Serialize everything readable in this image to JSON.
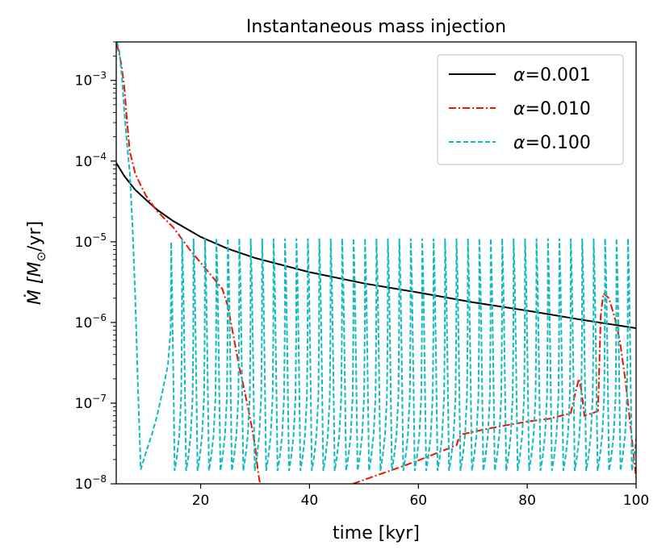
{
  "chart_data": {
    "type": "line",
    "title": "Instantaneous mass injection",
    "xlabel": "time [kyr]",
    "ylabel_prefix": "Ṁ [M",
    "ylabel_sub": "⊙",
    "ylabel_suffix": "/yr]",
    "xlim": [
      4.5,
      100
    ],
    "ylim": [
      1e-08,
      0.003
    ],
    "yscale": "log",
    "x_ticks": [
      20,
      40,
      60,
      80,
      100
    ],
    "x_tick_labels": [
      "20",
      "40",
      "60",
      "80",
      "100"
    ],
    "y_ticks": [
      1e-08,
      1e-07,
      1e-06,
      1e-05,
      0.0001,
      0.001
    ],
    "y_tick_bases": [
      "10",
      "10",
      "10",
      "10",
      "10",
      "10"
    ],
    "y_tick_exponents": [
      "−8",
      "−7",
      "−6",
      "−5",
      "−4",
      "−3"
    ],
    "legend_position": "top-right",
    "series": [
      {
        "name": "α=0.001",
        "legend_symbol": "α",
        "legend_value": "=0.001",
        "color": "#000000",
        "style": "solid",
        "x": [
          4.5,
          6,
          8,
          10,
          12,
          15,
          20,
          25,
          30,
          40,
          50,
          60,
          70,
          80,
          90,
          100
        ],
        "y": [
          9.5e-05,
          6.5e-05,
          4.4e-05,
          3.3e-05,
          2.5e-05,
          1.8e-05,
          1.15e-05,
          8.2e-06,
          6.3e-06,
          4.2e-06,
          3.05e-06,
          2.35e-06,
          1.78e-06,
          1.4e-06,
          1.08e-06,
          8.5e-07
        ]
      },
      {
        "name": "α=0.010",
        "legend_symbol": "α",
        "legend_value": "=0.010",
        "color": "#ee1100",
        "style": "dashdot",
        "x": [
          4.6,
          5,
          5.5,
          6,
          6.5,
          7,
          8,
          9,
          10,
          12,
          15,
          18,
          20,
          22,
          24,
          25,
          26,
          27,
          28,
          29,
          30,
          30.5,
          30.8,
          31
        ],
        "y": [
          0.0028,
          0.0022,
          0.0015,
          0.0008,
          0.0003,
          0.00013,
          7e-05,
          5e-05,
          3.7e-05,
          2.4e-05,
          1.5e-05,
          8e-06,
          5.5e-06,
          3.8e-06,
          2.6e-06,
          1.6e-06,
          7e-07,
          3e-07,
          1.5e-07,
          7e-08,
          3e-08,
          1.5e-08,
          1.1e-08,
          1e-08
        ],
        "x2": [
          48,
          52,
          56,
          60,
          64,
          67,
          67.5,
          68,
          72,
          76,
          80,
          84,
          88,
          89,
          89.5,
          90,
          90.5,
          91,
          92,
          93,
          93.5,
          94,
          95,
          96,
          97,
          98,
          99,
          100
        ],
        "y2": [
          1e-08,
          1.25e-08,
          1.55e-08,
          1.95e-08,
          2.5e-08,
          3e-08,
          3.8e-08,
          4.1e-08,
          4.7e-08,
          5.3e-08,
          5.9e-08,
          6.4e-08,
          7.5e-08,
          1.5e-07,
          2e-07,
          1.4e-07,
          7e-08,
          7.2e-08,
          7.5e-08,
          8e-08,
          1.2e-06,
          2.3e-06,
          2e-06,
          1.2e-06,
          6e-07,
          2e-07,
          5e-08,
          1.2e-08
        ]
      },
      {
        "name": "α=0.100",
        "legend_symbol": "α",
        "legend_value": "=0.100",
        "color": "#11bbbb",
        "style": "dashed",
        "initial_x": [
          4.6,
          5,
          5.5,
          6,
          6.5,
          7,
          7.5,
          8,
          8.5,
          9,
          10,
          11,
          12,
          13,
          14,
          14.5
        ],
        "initial_y": [
          0.003,
          0.0025,
          0.0012,
          0.0004,
          0.00016,
          7e-05,
          1.5e-05,
          2e-06,
          1.5e-07,
          1.5e-08,
          2.5e-08,
          4e-08,
          7e-08,
          1.4e-07,
          3e-07,
          8e-07
        ],
        "oscillation_peaks": [
          14.5,
          16.6,
          18.7,
          20.8,
          22.9,
          25.0,
          27.1,
          29.2,
          31.3,
          33.4,
          35.5,
          37.6,
          39.7,
          41.8,
          43.9,
          46.0,
          48.1,
          50.2,
          52.3,
          54.4,
          56.5,
          58.6,
          60.7,
          62.8,
          64.9,
          67.0,
          69.1,
          71.2,
          73.3,
          75.4,
          77.5,
          79.6,
          81.7,
          83.8,
          85.9,
          88.0,
          90.1,
          92.2,
          94.3,
          96.4,
          98.5
        ],
        "oscillation_peak_value": 1.1e-05,
        "oscillation_trough_value": 1.45e-08
      }
    ]
  }
}
